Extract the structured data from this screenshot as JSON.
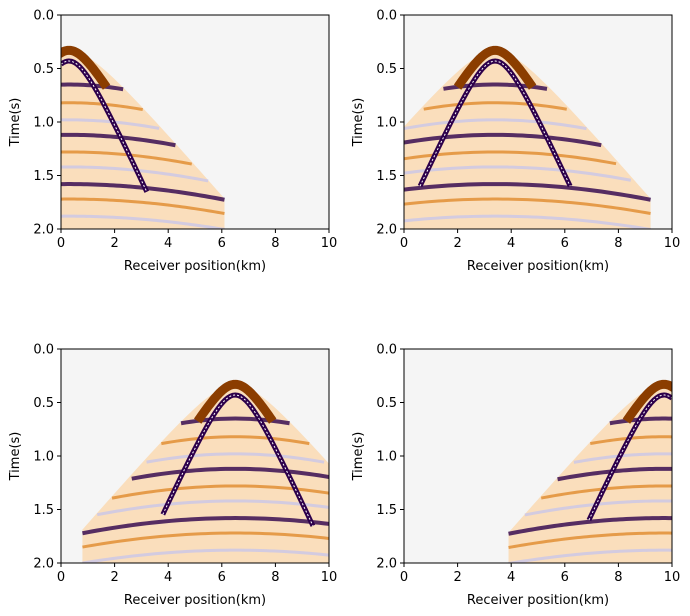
{
  "chart_data": [
    {
      "type": "heatmap",
      "title": "",
      "xlabel": "Receiver position(km)",
      "ylabel": "Time(s)",
      "xlim": [
        0,
        10
      ],
      "ylim": [
        2.0,
        0.0
      ],
      "xticks": [
        "0",
        "2",
        "4",
        "6",
        "8",
        "10"
      ],
      "yticks": [
        "0.0",
        "0.5",
        "1.0",
        "1.5",
        "2.0"
      ],
      "source_position_km": 0.3,
      "first_arrival_apex_s": 0.33,
      "direct_wave_apex_s": 0.43,
      "direct_wave_edge_km": [
        0.0,
        3.2
      ],
      "energy_edge_km": [
        0.0,
        6.1
      ]
    },
    {
      "type": "heatmap",
      "title": "",
      "xlabel": "Receiver position(km)",
      "ylabel": "Time(s)",
      "xlim": [
        0,
        10
      ],
      "ylim": [
        2.0,
        0.0
      ],
      "xticks": [
        "0",
        "2",
        "4",
        "6",
        "8",
        "10"
      ],
      "yticks": [
        "0.0",
        "0.5",
        "1.0",
        "1.5",
        "2.0"
      ],
      "source_position_km": 3.4,
      "first_arrival_apex_s": 0.33,
      "direct_wave_apex_s": 0.43,
      "direct_wave_edge_km": [
        0.6,
        6.2
      ],
      "energy_edge_km": [
        0.0,
        9.2
      ]
    },
    {
      "type": "heatmap",
      "title": "",
      "xlabel": "Receiver position(km)",
      "ylabel": "Time(s)",
      "xlim": [
        0,
        10
      ],
      "ylim": [
        2.0,
        0.0
      ],
      "xticks": [
        "0",
        "2",
        "4",
        "6",
        "8",
        "10"
      ],
      "yticks": [
        "0.0",
        "0.5",
        "1.0",
        "1.5",
        "2.0"
      ],
      "source_position_km": 6.5,
      "first_arrival_apex_s": 0.33,
      "direct_wave_apex_s": 0.43,
      "direct_wave_edge_km": [
        3.8,
        9.4
      ],
      "energy_edge_km": [
        0.8,
        10.0
      ]
    },
    {
      "type": "heatmap",
      "title": "",
      "xlabel": "Receiver position(km)",
      "ylabel": "Time(s)",
      "xlim": [
        0,
        10
      ],
      "ylim": [
        2.0,
        0.0
      ],
      "xticks": [
        "0",
        "2",
        "4",
        "6",
        "8",
        "10"
      ],
      "yticks": [
        "0.0",
        "0.5",
        "1.0",
        "1.5",
        "2.0"
      ],
      "source_position_km": 9.7,
      "first_arrival_apex_s": 0.33,
      "direct_wave_apex_s": 0.43,
      "direct_wave_edge_km": [
        6.9,
        10.0
      ],
      "energy_edge_km": [
        3.9,
        10.0
      ]
    }
  ],
  "colors": {
    "background": "#f5f5f5",
    "positive_strong": "#8b3d00",
    "positive_mid": "#e08a2c",
    "positive_light": "#fbd5a8",
    "negative_strong": "#2d004b",
    "negative_light": "#c9c6e8",
    "axis": "#000000"
  }
}
